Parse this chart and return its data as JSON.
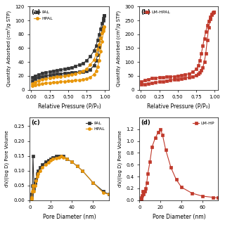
{
  "subplot_a": {
    "label": "(a)",
    "PAL_ads_x": [
      0.01,
      0.05,
      0.1,
      0.15,
      0.2,
      0.25,
      0.3,
      0.35,
      0.4,
      0.45,
      0.5,
      0.55,
      0.6,
      0.65,
      0.7,
      0.75,
      0.8,
      0.85,
      0.88,
      0.9,
      0.92,
      0.94,
      0.96,
      0.98,
      0.99
    ],
    "PAL_ads_y": [
      13,
      16,
      17.5,
      19,
      20,
      21,
      22,
      22.5,
      23,
      23.5,
      24,
      24.5,
      25,
      25.5,
      26,
      27,
      29,
      35,
      42,
      50,
      62,
      75,
      88,
      100,
      107
    ],
    "PAL_des_x": [
      0.99,
      0.98,
      0.96,
      0.94,
      0.92,
      0.9,
      0.88,
      0.85,
      0.8,
      0.75,
      0.7,
      0.65,
      0.6,
      0.55,
      0.5,
      0.45,
      0.4,
      0.35,
      0.3,
      0.25,
      0.2,
      0.15,
      0.1,
      0.05,
      0.01
    ],
    "PAL_des_y": [
      107,
      103,
      96,
      88,
      80,
      72,
      64,
      56,
      48,
      42,
      38,
      36,
      34,
      32,
      31,
      30,
      29,
      28,
      27,
      26,
      25,
      24,
      22,
      20,
      18
    ],
    "HPAL_ads_x": [
      0.01,
      0.05,
      0.1,
      0.15,
      0.2,
      0.25,
      0.3,
      0.35,
      0.4,
      0.45,
      0.5,
      0.55,
      0.6,
      0.65,
      0.7,
      0.75,
      0.8,
      0.85,
      0.88,
      0.9,
      0.92,
      0.94,
      0.96,
      0.98,
      0.99
    ],
    "HPAL_ads_y": [
      6,
      7,
      8,
      9,
      9.5,
      10,
      10.5,
      11,
      11.5,
      12,
      12.5,
      13,
      13.5,
      14,
      15,
      16,
      18,
      22,
      27,
      33,
      42,
      55,
      70,
      85,
      91
    ],
    "HPAL_des_x": [
      0.99,
      0.98,
      0.96,
      0.94,
      0.92,
      0.9,
      0.88,
      0.85,
      0.8,
      0.75,
      0.7,
      0.65,
      0.6,
      0.55,
      0.5,
      0.45,
      0.4,
      0.35,
      0.3,
      0.25,
      0.2,
      0.15,
      0.1,
      0.05,
      0.01
    ],
    "HPAL_des_y": [
      91,
      88,
      82,
      75,
      66,
      58,
      51,
      43,
      36,
      30,
      27,
      25,
      23,
      22,
      21,
      20,
      19,
      18.5,
      18,
      17,
      16,
      15,
      13,
      11,
      9
    ],
    "xlabel": "Relative Pressure (P/P₀)",
    "ylabel": "Quantity Adsorbed (cm³/g STP)",
    "ylim": [
      0,
      120
    ],
    "yticks": [
      0,
      20,
      40,
      60,
      80,
      100,
      120
    ],
    "PAL_color": "#333333",
    "HPAL_color": "#E8960A"
  },
  "subplot_b": {
    "label": "(b)",
    "LM_HPAL_ads_x": [
      0.01,
      0.05,
      0.1,
      0.15,
      0.2,
      0.25,
      0.3,
      0.35,
      0.4,
      0.45,
      0.5,
      0.55,
      0.6,
      0.65,
      0.7,
      0.75,
      0.78,
      0.8,
      0.82,
      0.84,
      0.86,
      0.88,
      0.9,
      0.92,
      0.94,
      0.96,
      0.98,
      0.99
    ],
    "LM_HPAL_ads_y": [
      18,
      20,
      22,
      24,
      26,
      28,
      30,
      32,
      34,
      36,
      38,
      40,
      42,
      44,
      47,
      52,
      56,
      62,
      70,
      80,
      100,
      130,
      180,
      225,
      255,
      270,
      278,
      282
    ],
    "LM_HPAL_des_x": [
      0.99,
      0.98,
      0.96,
      0.94,
      0.92,
      0.9,
      0.88,
      0.86,
      0.84,
      0.82,
      0.8,
      0.78,
      0.75,
      0.7,
      0.65,
      0.6,
      0.55,
      0.5,
      0.45,
      0.4,
      0.35,
      0.3,
      0.25,
      0.2,
      0.15,
      0.1,
      0.05,
      0.01
    ],
    "LM_HPAL_des_y": [
      282,
      278,
      272,
      262,
      248,
      232,
      210,
      185,
      158,
      130,
      106,
      88,
      74,
      64,
      58,
      54,
      52,
      50,
      48,
      47,
      46,
      45,
      44,
      43,
      41,
      38,
      34,
      28
    ],
    "xlabel": "Relative Pressure (P/P₀)",
    "ylabel": "Quantity Adsorbed (cm³/g STP)",
    "ylim": [
      0,
      300
    ],
    "yticks": [
      0,
      50,
      100,
      150,
      200,
      250,
      300
    ],
    "LM_HPAL_color": "#C0392B"
  },
  "subplot_c": {
    "label": "(c)",
    "PAL_x": [
      1.5,
      2,
      2.5,
      3,
      4,
      5,
      6,
      7,
      8,
      10,
      12,
      15,
      18,
      20,
      22,
      25,
      28,
      30,
      32,
      35,
      40,
      45,
      50,
      60,
      70,
      75
    ],
    "PAL_y": [
      0.01,
      0.02,
      0.05,
      0.15,
      0.04,
      0.06,
      0.07,
      0.09,
      0.1,
      0.11,
      0.12,
      0.13,
      0.135,
      0.14,
      0.145,
      0.148,
      0.15,
      0.15,
      0.148,
      0.14,
      0.13,
      0.115,
      0.1,
      0.06,
      0.03,
      0.02
    ],
    "HPAL_x": [
      1.5,
      2,
      2.5,
      3,
      4,
      5,
      6,
      7,
      8,
      10,
      12,
      15,
      18,
      20,
      22,
      25,
      28,
      30,
      32,
      35,
      40,
      45,
      50,
      60,
      70,
      75
    ],
    "HPAL_y": [
      0.005,
      0.01,
      0.03,
      0.05,
      0.03,
      0.05,
      0.065,
      0.08,
      0.09,
      0.1,
      0.11,
      0.12,
      0.128,
      0.135,
      0.14,
      0.143,
      0.145,
      0.148,
      0.145,
      0.14,
      0.13,
      0.115,
      0.1,
      0.06,
      0.025,
      0.02
    ],
    "xlabel": "Pore Diameter (nm)",
    "ylabel": "dV/(log D) Pore Volume",
    "ylim": [
      0,
      0.28
    ],
    "yticks": [
      0.0,
      0.05,
      0.1,
      0.15,
      0.2,
      0.25
    ],
    "xlim": [
      0,
      75
    ],
    "PAL_color": "#333333",
    "HPAL_color": "#E8960A"
  },
  "subplot_d": {
    "label": "(d)",
    "LM_HP_x": [
      1.5,
      2,
      2.5,
      3,
      4,
      5,
      6,
      7,
      8,
      10,
      12,
      15,
      18,
      20,
      22,
      25,
      30,
      35,
      40,
      50,
      60,
      70,
      75
    ],
    "LM_HP_y": [
      0.02,
      0.05,
      0.08,
      0.15,
      0.1,
      0.15,
      0.2,
      0.3,
      0.45,
      0.65,
      0.9,
      1.05,
      1.15,
      1.2,
      1.1,
      0.85,
      0.55,
      0.35,
      0.22,
      0.12,
      0.07,
      0.05,
      0.04
    ],
    "xlabel": "Pore Diameter (nm)",
    "ylabel": "dV/(log D) Pore Volume",
    "ylim": [
      0,
      1.4
    ],
    "yticks": [
      0.0,
      0.2,
      0.4,
      0.6,
      0.8,
      1.0,
      1.2
    ],
    "xlim": [
      0,
      75
    ],
    "LM_HP_color": "#C0392B"
  }
}
